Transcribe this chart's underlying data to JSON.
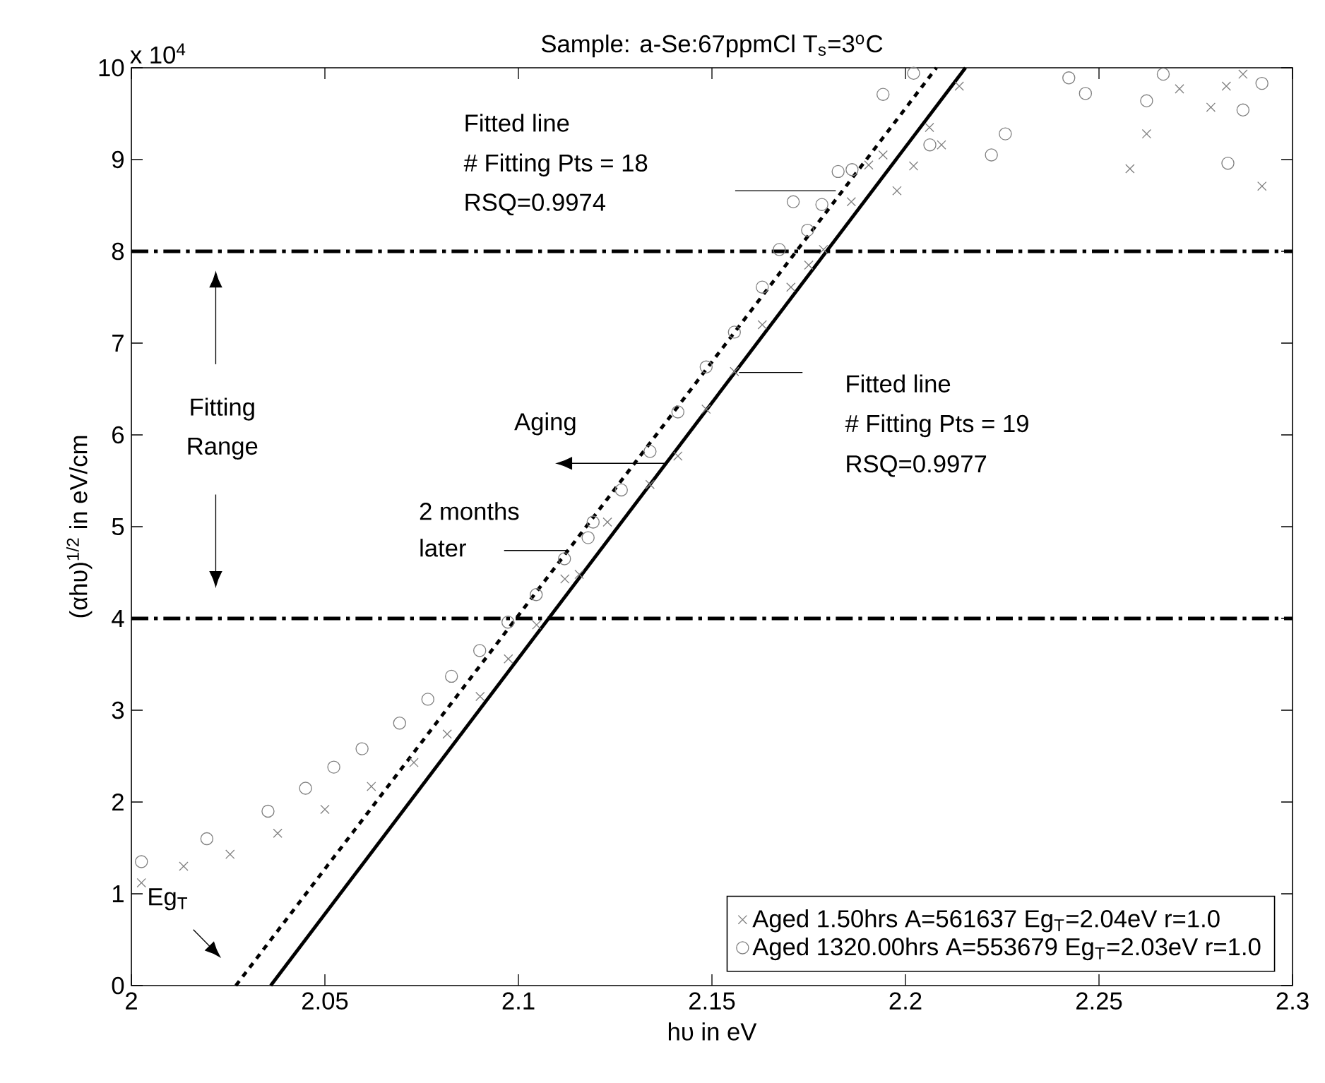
{
  "chart_data": {
    "type": "scatter",
    "title": "Sample: a-Se:67ppmCl T$_{s}$=3$^{o}$C",
    "xlabel": "hυ in eV",
    "ylabel": "(αhυ)$^{1/2}$ in eV/cm",
    "xlim": [
      2,
      2.3
    ],
    "ylim": [
      0,
      10
    ],
    "xticks": [
      2,
      2.05,
      2.1,
      2.15,
      2.2,
      2.25,
      2.3
    ],
    "yticks": [
      0,
      1,
      2,
      3,
      4,
      5,
      6,
      7,
      8,
      9,
      10
    ],
    "grid": false,
    "legend": "bottom right",
    "series": [
      {
        "marker": "cross",
        "name": "Aged 1.50hrs A=561637 Eg$_{T}$=2.04eV r=1.0",
        "color": "#808080",
        "x": [
          2.0026,
          2.0135,
          2.0255,
          2.0378,
          2.05,
          2.062,
          2.073,
          2.0816,
          2.0901,
          2.0974,
          2.1047,
          2.112,
          2.1157,
          2.123,
          2.134,
          2.1412,
          2.1485,
          2.1558,
          2.163,
          2.1704,
          2.175,
          2.1788,
          2.186,
          2.1905,
          2.1942,
          2.1978,
          2.2021,
          2.2062,
          2.2093,
          2.2139,
          2.258,
          2.2623,
          2.2708,
          2.2789,
          2.2829,
          2.2872,
          2.2921
        ],
        "values": [
          1.12,
          1.3,
          1.43,
          1.66,
          1.92,
          2.17,
          2.43,
          2.74,
          3.15,
          3.56,
          3.93,
          4.43,
          4.48,
          5.05,
          5.46,
          5.77,
          6.28,
          6.69,
          7.2,
          7.61,
          7.85,
          8.02,
          8.54,
          8.94,
          9.05,
          8.66,
          8.93,
          9.35,
          9.16,
          9.8,
          8.9,
          9.28,
          9.77,
          9.57,
          9.8,
          9.93,
          8.71
        ]
      },
      {
        "marker": "circle",
        "name": "Aged 1320.00hrs A=553679 Eg$_{T}$=2.03eV r=1.0",
        "color": "#808080",
        "x": [
          2.0026,
          2.0195,
          2.0353,
          2.045,
          2.0523,
          2.0596,
          2.0693,
          2.0766,
          2.0827,
          2.09,
          2.0973,
          2.1046,
          2.1119,
          2.118,
          2.1193,
          2.1266,
          2.134,
          2.1412,
          2.1485,
          2.1558,
          2.163,
          2.1674,
          2.171,
          2.1747,
          2.1784,
          2.1826,
          2.1862,
          2.1942,
          2.2021,
          2.2063,
          2.2222,
          2.2258,
          2.2422,
          2.2465,
          2.2623,
          2.2666,
          2.2833,
          2.2872,
          2.2921
        ],
        "values": [
          1.35,
          1.6,
          1.9,
          2.15,
          2.38,
          2.58,
          2.86,
          3.12,
          3.37,
          3.65,
          3.96,
          4.26,
          4.65,
          4.88,
          5.05,
          5.4,
          5.82,
          6.25,
          6.74,
          7.12,
          7.61,
          8.02,
          8.54,
          8.23,
          8.51,
          8.87,
          8.89,
          9.71,
          9.94,
          9.16,
          9.05,
          9.28,
          9.89,
          9.72,
          9.64,
          9.93,
          8.96,
          9.54,
          9.83
        ]
      },
      {
        "type": "line",
        "marker": "none",
        "line_style": "dashed",
        "color": "#000000",
        "x": [
          2.027,
          2.208
        ],
        "values": [
          0,
          10
        ]
      },
      {
        "type": "line",
        "marker": "none",
        "line_style": "solid",
        "color": "#000000",
        "x": [
          2.036,
          2.2155
        ],
        "values": [
          0,
          10
        ]
      }
    ],
    "ref_lines": [
      {
        "axis": "y",
        "value": 4,
        "color": "#000000",
        "line_style": "dashdot"
      },
      {
        "axis": "y",
        "value": 8,
        "color": "#000000",
        "line_style": "dashdot"
      }
    ],
    "annotations": [
      "x 10$^{4}$",
      "Fitted line",
      "# Fitting Pts = 18",
      "RSQ=0.9974",
      "Fitted line",
      "# Fitting Pts = 19",
      "RSQ=0.9977",
      {
        "text": "Aging",
        "x": 2.138,
        "y": 5.69
      },
      "2 months",
      "later",
      "Fitting",
      "Range",
      "Eg$_{T}$"
    ]
  }
}
